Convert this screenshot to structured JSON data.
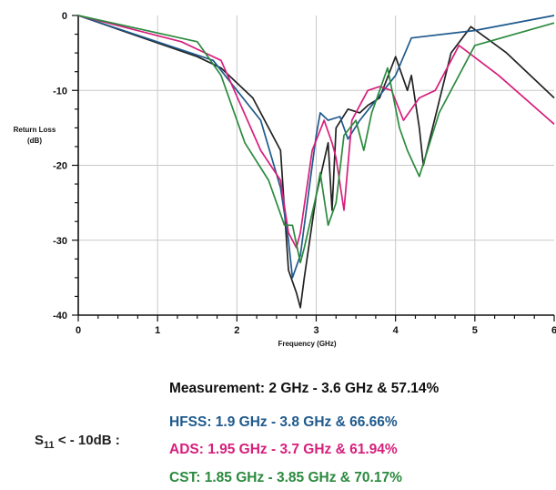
{
  "chart_data": {
    "type": "line",
    "ylabel": "Return Loss\n(dB)",
    "xlabel": "Frequency (GHz)",
    "xlim": [
      0,
      6
    ],
    "ylim": [
      -40,
      0
    ],
    "x_ticks": [
      "0",
      "1",
      "2",
      "3",
      "4",
      "5",
      "6"
    ],
    "y_ticks": [
      "0",
      "-10",
      "-20",
      "-30",
      "-40"
    ],
    "grid": true,
    "series": [
      {
        "color": "#222222",
        "points": [
          [
            0,
            0
          ],
          [
            1.5,
            -5.5
          ],
          [
            1.8,
            -7
          ],
          [
            2.2,
            -11
          ],
          [
            2.55,
            -18
          ],
          [
            2.65,
            -34
          ],
          [
            2.75,
            -37
          ],
          [
            2.8,
            -39
          ],
          [
            2.85,
            -35
          ],
          [
            3.0,
            -24
          ],
          [
            3.15,
            -17
          ],
          [
            3.2,
            -26
          ],
          [
            3.25,
            -15
          ],
          [
            3.4,
            -12.5
          ],
          [
            3.55,
            -13
          ],
          [
            3.65,
            -12
          ],
          [
            3.8,
            -11
          ],
          [
            4.0,
            -5.5
          ],
          [
            4.15,
            -10
          ],
          [
            4.2,
            -8
          ],
          [
            4.3,
            -15
          ],
          [
            4.35,
            -20
          ],
          [
            4.7,
            -5
          ],
          [
            4.95,
            -1.5
          ],
          [
            5.4,
            -5
          ],
          [
            6.0,
            -11
          ]
        ]
      },
      {
        "color": "#1f5a8c",
        "points": [
          [
            0,
            0
          ],
          [
            1.7,
            -6
          ],
          [
            2.3,
            -14
          ],
          [
            2.55,
            -23
          ],
          [
            2.65,
            -30
          ],
          [
            2.7,
            -35
          ],
          [
            2.8,
            -32
          ],
          [
            2.95,
            -20
          ],
          [
            3.0,
            -16
          ],
          [
            3.05,
            -13
          ],
          [
            3.15,
            -14
          ],
          [
            3.3,
            -13.5
          ],
          [
            3.4,
            -16.5
          ],
          [
            3.55,
            -14
          ],
          [
            3.7,
            -12
          ],
          [
            3.85,
            -10
          ],
          [
            4.0,
            -8
          ],
          [
            4.2,
            -3
          ],
          [
            5.0,
            -2
          ],
          [
            6.0,
            0
          ]
        ]
      },
      {
        "color": "#d61f7c",
        "points": [
          [
            0,
            0
          ],
          [
            1.3,
            -3.5
          ],
          [
            1.6,
            -5
          ],
          [
            1.8,
            -6
          ],
          [
            2.3,
            -18
          ],
          [
            2.55,
            -22
          ],
          [
            2.65,
            -29
          ],
          [
            2.75,
            -31
          ],
          [
            2.8,
            -29
          ],
          [
            2.95,
            -18
          ],
          [
            3.1,
            -14
          ],
          [
            3.2,
            -17
          ],
          [
            3.25,
            -19
          ],
          [
            3.35,
            -26
          ],
          [
            3.45,
            -14
          ],
          [
            3.55,
            -12
          ],
          [
            3.65,
            -10
          ],
          [
            3.8,
            -9.5
          ],
          [
            3.95,
            -10
          ],
          [
            4.1,
            -14
          ],
          [
            4.3,
            -11
          ],
          [
            4.5,
            -10
          ],
          [
            4.8,
            -4
          ],
          [
            5.3,
            -8
          ],
          [
            6.0,
            -14.5
          ]
        ]
      },
      {
        "color": "#2b8a3e",
        "points": [
          [
            0,
            0
          ],
          [
            1.5,
            -3.5
          ],
          [
            1.8,
            -8
          ],
          [
            2.1,
            -17
          ],
          [
            2.4,
            -22
          ],
          [
            2.6,
            -28
          ],
          [
            2.7,
            -28
          ],
          [
            2.8,
            -33
          ],
          [
            2.85,
            -31
          ],
          [
            3.0,
            -24
          ],
          [
            3.05,
            -21
          ],
          [
            3.15,
            -28
          ],
          [
            3.25,
            -25
          ],
          [
            3.35,
            -16
          ],
          [
            3.5,
            -14
          ],
          [
            3.6,
            -18
          ],
          [
            3.7,
            -13
          ],
          [
            3.8,
            -10
          ],
          [
            3.9,
            -7
          ],
          [
            4.05,
            -15
          ],
          [
            4.15,
            -18
          ],
          [
            4.3,
            -21.5
          ],
          [
            4.55,
            -13
          ],
          [
            5.0,
            -4
          ],
          [
            5.5,
            -2.5
          ],
          [
            6.0,
            -1
          ]
        ]
      }
    ]
  },
  "summary": {
    "condition_main": "S",
    "condition_sub": "11",
    "condition_rest": " < - 10dB  :",
    "lines": [
      {
        "text": "Measurement: 2 GHz - 3.6 GHz & 57.14%",
        "color": "#111111"
      },
      {
        "text": "HFSS: 1.9 GHz - 3.8 GHz & 66.66%",
        "color": "#1f5a8c"
      },
      {
        "text": "ADS: 1.95 GHz - 3.7 GHz & 61.94%",
        "color": "#d61f7c"
      },
      {
        "text": "CST: 1.85 GHz - 3.85 GHz & 70.17%",
        "color": "#2b8a3e"
      }
    ]
  }
}
